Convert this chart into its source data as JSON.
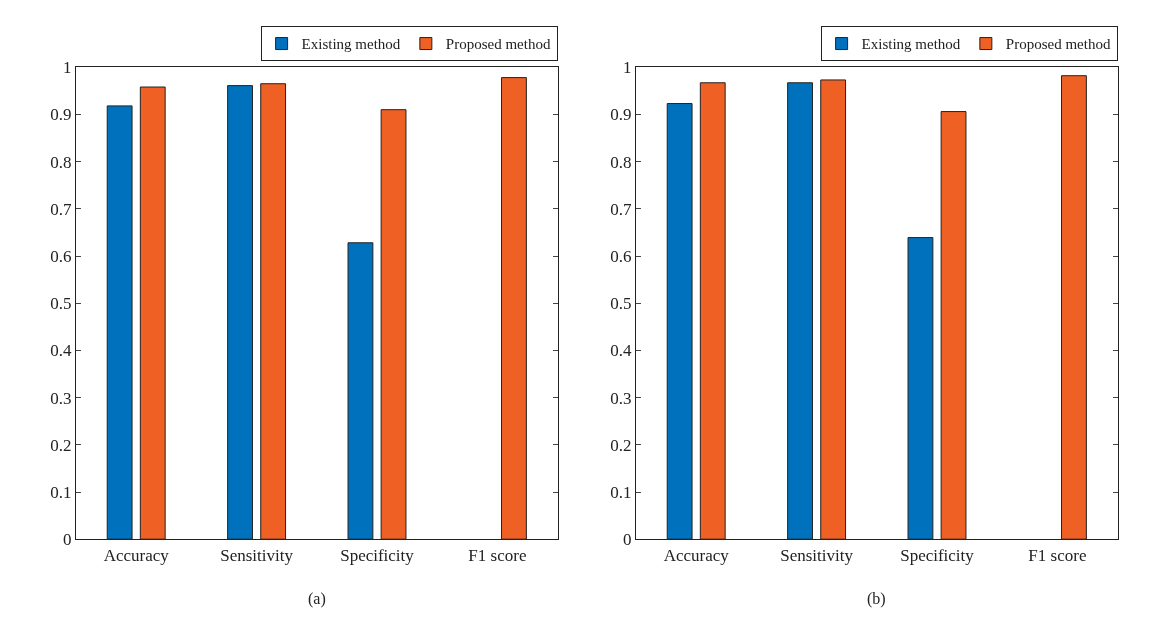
{
  "chart_data": [
    {
      "type": "bar",
      "categories": [
        "Accuracy",
        "Sensitivity",
        "Specificity",
        "F1 score"
      ],
      "series": [
        {
          "name": "Existing method",
          "color": "#0072bd",
          "values": [
            0.918,
            0.961,
            0.628,
            null
          ]
        },
        {
          "name": "Proposed method",
          "color": "#ef6024",
          "values": [
            0.958,
            0.965,
            0.91,
            0.978
          ]
        }
      ],
      "ylim": [
        0,
        1
      ],
      "yticks": [
        0,
        0.1,
        0.2,
        0.3,
        0.4,
        0.5,
        0.6,
        0.7,
        0.8,
        0.9,
        1
      ],
      "legend": "top right",
      "annotations": [
        "(a)"
      ]
    },
    {
      "type": "bar",
      "categories": [
        "Accuracy",
        "Sensitivity",
        "Specificity",
        "F1 score"
      ],
      "series": [
        {
          "name": "Existing method",
          "color": "#0072bd",
          "values": [
            0.923,
            0.967,
            0.639,
            null
          ]
        },
        {
          "name": "Proposed method",
          "color": "#ef6024",
          "values": [
            0.967,
            0.973,
            0.906,
            0.982
          ]
        }
      ],
      "ylim": [
        0,
        1
      ],
      "yticks": [
        0,
        0.1,
        0.2,
        0.3,
        0.4,
        0.5,
        0.6,
        0.7,
        0.8,
        0.9,
        1
      ],
      "legend": "top right",
      "annotations": [
        "(b)"
      ]
    }
  ]
}
